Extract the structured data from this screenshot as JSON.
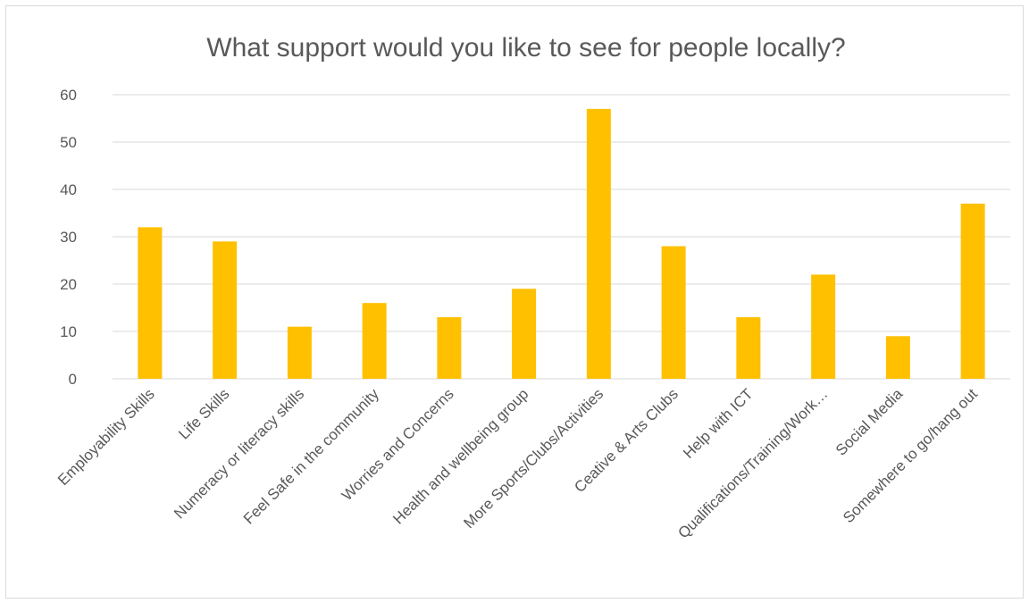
{
  "chart_data": {
    "type": "bar",
    "title": "What support would you like to see for people locally?",
    "xlabel": "",
    "ylabel": "",
    "categories": [
      "Employability Skills",
      "Life Skills",
      "Numeracy or literacy skills",
      "Feel Safe in the community",
      "Worries and Concerns",
      "Health and wellbeing group",
      "More Sports/Clubs/Activities",
      "Ceative & Arts Clubs",
      "Help with ICT",
      "Qualifications/Training/Work…",
      "Social Media",
      "Somewhere to go/hang out"
    ],
    "values": [
      32,
      29,
      11,
      16,
      13,
      19,
      57,
      28,
      13,
      22,
      9,
      37
    ],
    "ylim": [
      0,
      60
    ],
    "yticks": [
      0,
      10,
      20,
      30,
      40,
      50,
      60
    ],
    "grid": true,
    "legend": "none",
    "bar_color": "#FFC000"
  }
}
